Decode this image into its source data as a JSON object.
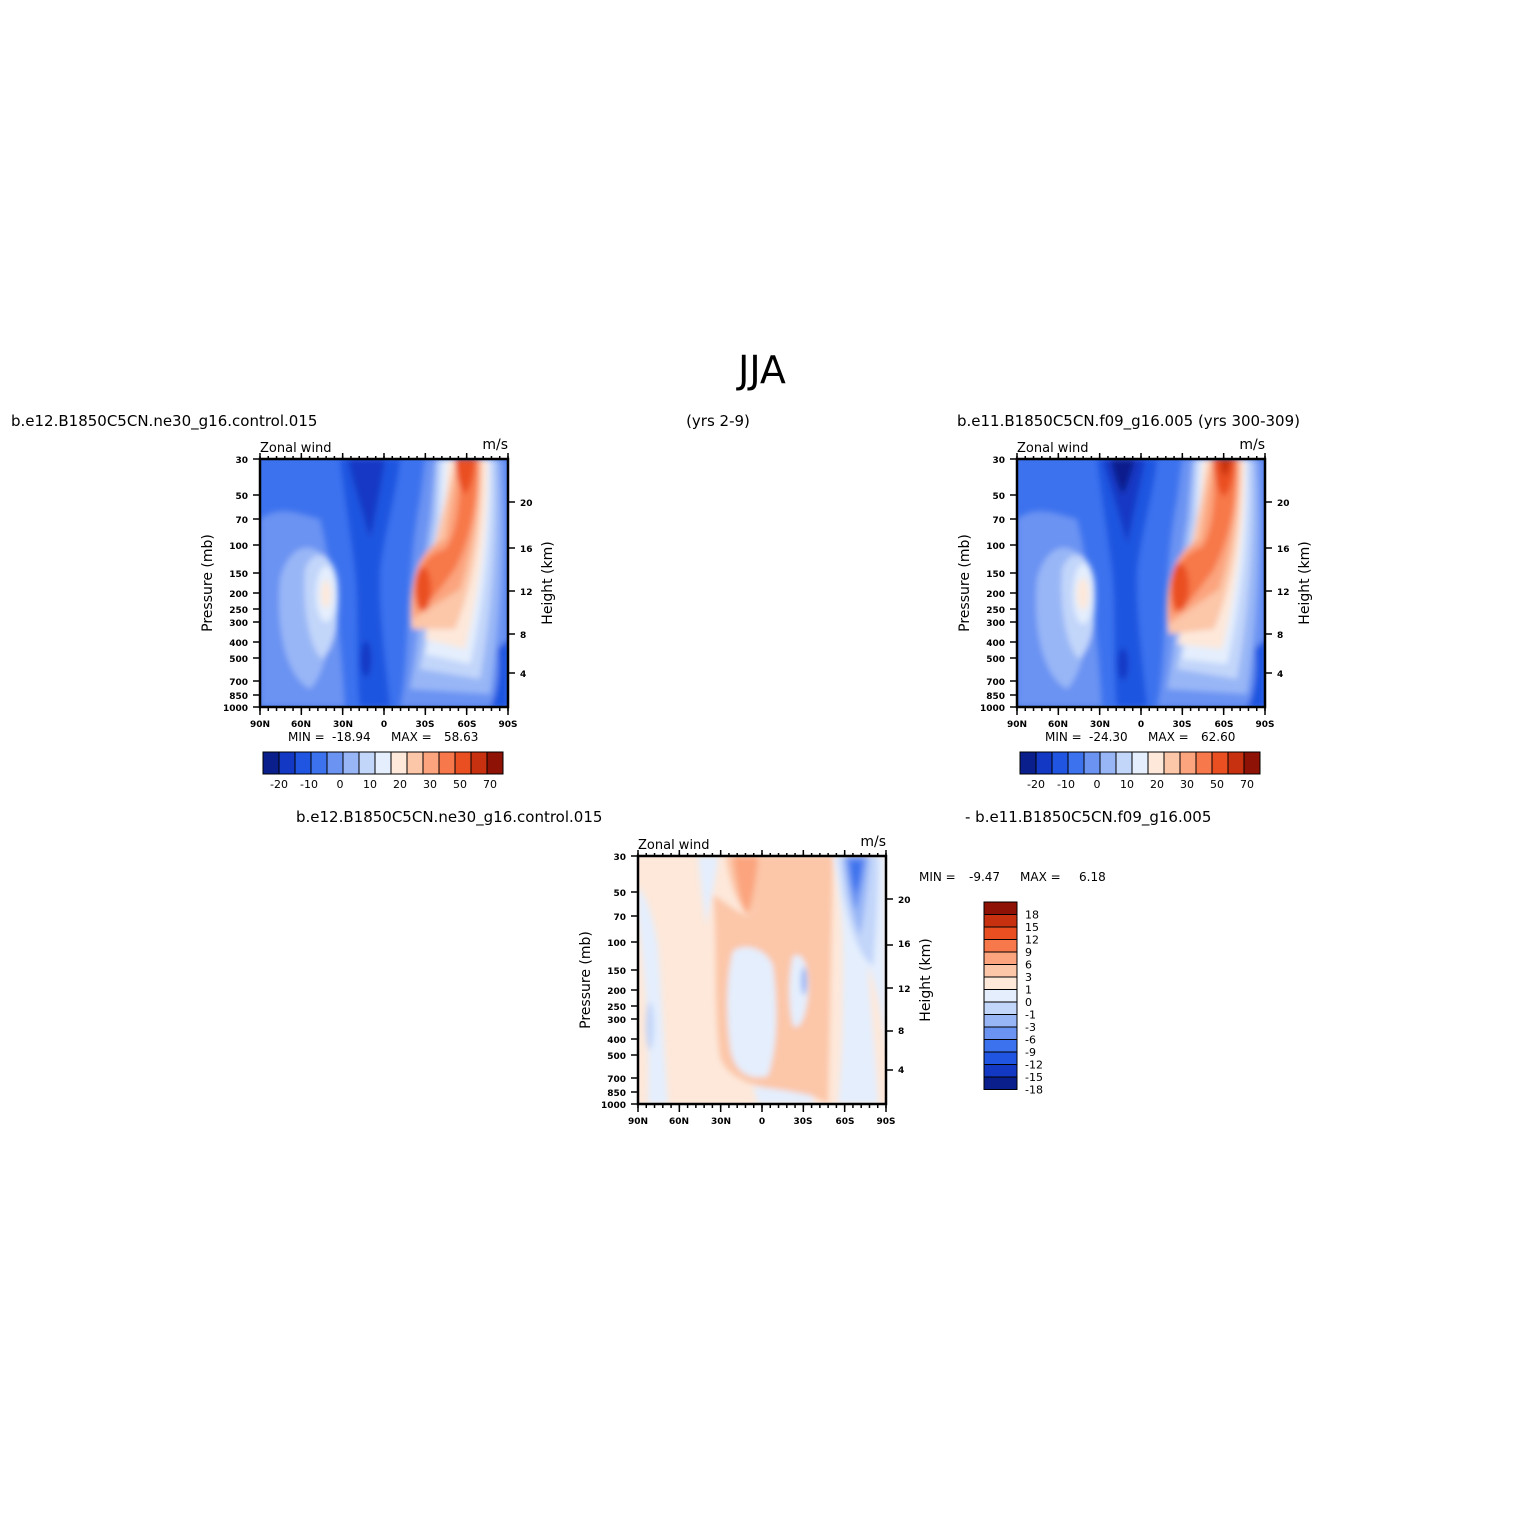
{
  "page": {
    "title": "JJA",
    "left_header": "b.e12.B1850C5CN.ne30_g16.control.015",
    "center_header": "(yrs 2-9)",
    "right_header": "b.e11.B1850C5CN.f09_g16.005 (yrs 300-309)",
    "diff_left_header": "b.e12.B1850C5CN.ne30_g16.control.015",
    "diff_right_header": "- b.e11.B1850C5CN.f09_g16.005"
  },
  "colors": {
    "full_palette": [
      "#0a1f8c",
      "#1238c4",
      "#1f55e0",
      "#3d72ee",
      "#6a93f2",
      "#98b6f6",
      "#c2d6fa",
      "#e4eefd",
      "#fde8da",
      "#fcc6a8",
      "#fba47e",
      "#f7784a",
      "#ea4f22",
      "#c7310f",
      "#8f1206"
    ],
    "diff_palette": [
      "#0a1f8c",
      "#1238c4",
      "#1f55e0",
      "#3d72ee",
      "#6a93f2",
      "#98b6f6",
      "#c2d6fa",
      "#e4eefd",
      "#fde8da",
      "#fcc6a8",
      "#fba47e",
      "#f7784a",
      "#ea4f22",
      "#c7310f",
      "#8f1206"
    ]
  },
  "chart_data": [
    {
      "type": "contour",
      "panel": "top-left",
      "subtitle_left": "Zonal wind",
      "subtitle_right": "m/s",
      "ylabel": "Pressure (mb)",
      "ylabel_right": "Height (km)",
      "x_ticks": [
        "90N",
        "60N",
        "30N",
        "0",
        "30S",
        "60S",
        "90S"
      ],
      "y_ticks": [
        "30",
        "50",
        "70",
        "100",
        "150",
        "200",
        "250",
        "300",
        "400",
        "500",
        "700",
        "850",
        "1000"
      ],
      "y_right_ticks": [
        "20",
        "16",
        "12",
        "8",
        "4"
      ],
      "stats": {
        "min_label": "MIN =",
        "min": "-18.94",
        "max_label": "MAX =",
        "max": "58.63"
      },
      "colorbar_labels": [
        "-20",
        "-10",
        "0",
        "10",
        "20",
        "30",
        "50",
        "70"
      ],
      "features": [
        {
          "name": "easterly core",
          "lat": "~15N",
          "pressure_mb": "30-200",
          "value_range": "-20 to -10"
        },
        {
          "name": "winter westerly jet",
          "lat": "~55S",
          "pressure_mb": "30-100",
          "value_range": "50-70"
        },
        {
          "name": "subtropical jet",
          "lat": "~30S",
          "pressure_mb": "200",
          "value_range": "30-50"
        },
        {
          "name": "NH weak westerly",
          "lat": "~40N",
          "pressure_mb": "200",
          "value_range": "10-20"
        }
      ]
    },
    {
      "type": "contour",
      "panel": "top-right",
      "subtitle_left": "Zonal wind",
      "subtitle_right": "m/s",
      "ylabel": "Pressure (mb)",
      "ylabel_right": "Height (km)",
      "x_ticks": [
        "90N",
        "60N",
        "30N",
        "0",
        "30S",
        "60S",
        "90S"
      ],
      "y_ticks": [
        "30",
        "50",
        "70",
        "100",
        "150",
        "200",
        "250",
        "300",
        "400",
        "500",
        "700",
        "850",
        "1000"
      ],
      "y_right_ticks": [
        "20",
        "16",
        "12",
        "8",
        "4"
      ],
      "stats": {
        "min_label": "MIN =",
        "min": "-24.30",
        "max_label": "MAX =",
        "max": "62.60"
      },
      "colorbar_labels": [
        "-20",
        "-10",
        "0",
        "10",
        "20",
        "30",
        "50",
        "70"
      ]
    },
    {
      "type": "contour",
      "panel": "bottom-difference",
      "subtitle_left": "Zonal wind",
      "subtitle_right": "m/s",
      "ylabel": "Pressure (mb)",
      "ylabel_right": "Height (km)",
      "x_ticks": [
        "90N",
        "60N",
        "30N",
        "0",
        "30S",
        "60S",
        "90S"
      ],
      "y_ticks": [
        "30",
        "50",
        "70",
        "100",
        "150",
        "200",
        "250",
        "300",
        "400",
        "500",
        "700",
        "850",
        "1000"
      ],
      "y_right_ticks": [
        "20",
        "16",
        "12",
        "8",
        "4"
      ],
      "stats": {
        "min_label": "MIN =",
        "min": "-9.47",
        "max_label": "MAX =",
        "max": "6.18"
      },
      "colorbar_labels": [
        "18",
        "15",
        "12",
        "9",
        "6",
        "3",
        "1",
        "0",
        "-1",
        "-3",
        "-6",
        "-9",
        "-12",
        "-15",
        "-18"
      ]
    }
  ]
}
